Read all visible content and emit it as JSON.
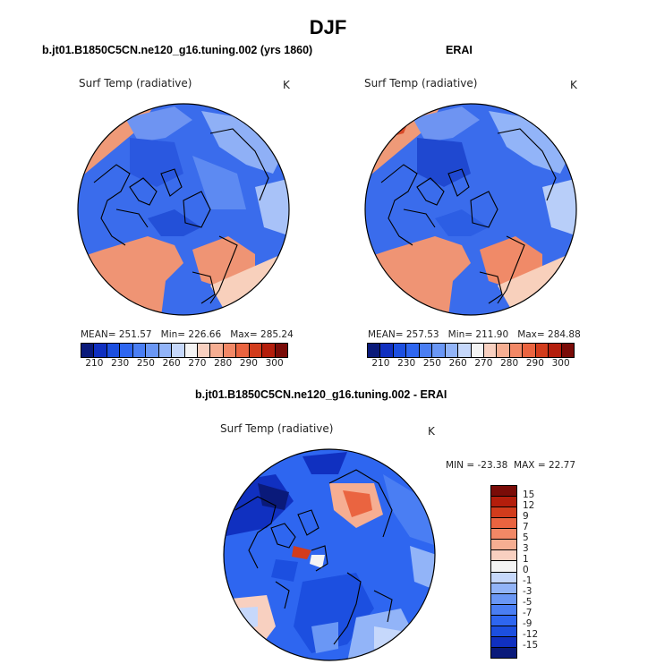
{
  "title": "DJF",
  "panels": [
    {
      "id": "model",
      "title": "b.jt01.B1850C5CN.ne120_g16.tuning.002 (yrs 1860)",
      "variable": "Surf Temp (radiative)",
      "units": "K",
      "stats": {
        "mean_label": "MEAN=",
        "mean": "251.57",
        "min_label": "Min=",
        "min": "226.66",
        "max_label": "Max=",
        "max": "285.24"
      }
    },
    {
      "id": "obs",
      "title": "ERAI",
      "variable": "Surf Temp (radiative)",
      "units": "K",
      "stats": {
        "mean_label": "MEAN=",
        "mean": "257.53",
        "min_label": "Min=",
        "min": "211.90",
        "max_label": "Max=",
        "max": "284.88"
      }
    }
  ],
  "diff_panel": {
    "title": "b.jt01.B1850C5CN.ne120_g16.tuning.002 - ERAI",
    "variable": "Surf Temp (radiative)",
    "units": "K",
    "stats": {
      "min_label": "MIN =",
      "min": "-23.38",
      "max_label": "MAX =",
      "max": "22.77"
    }
  },
  "colorbar_abs": {
    "ticks": [
      "210",
      "230",
      "250",
      "260",
      "270",
      "280",
      "290",
      "300"
    ],
    "colors": [
      "#0a1a7a",
      "#1030c0",
      "#1c4fe0",
      "#2e66f0",
      "#4a7ef3",
      "#6a97f5",
      "#92b4f8",
      "#c6d8fb",
      "#f4f4f4",
      "#f8d0c0",
      "#f6ae92",
      "#f28866",
      "#ea6440",
      "#d23c1c",
      "#b41e0c",
      "#7a0c08"
    ]
  },
  "colorbar_diff": {
    "ticks": [
      "15",
      "12",
      "9",
      "7",
      "5",
      "3",
      "1",
      "0",
      "-1",
      "-3",
      "-5",
      "-7",
      "-9",
      "-12",
      "-15"
    ],
    "colors": [
      "#7a0c08",
      "#b41e0c",
      "#d23c1c",
      "#ea6440",
      "#f28866",
      "#f6ae92",
      "#f8d0c0",
      "#f4f4f4",
      "#c6d8fb",
      "#92b4f8",
      "#6a97f5",
      "#4a7ef3",
      "#2e66f0",
      "#1c4fe0",
      "#1030c0",
      "#0a1a7a"
    ]
  },
  "colors": {
    "land_outline": "#000000",
    "text": "#222222"
  },
  "icons": [
    "coastline-map",
    "colorbar"
  ]
}
